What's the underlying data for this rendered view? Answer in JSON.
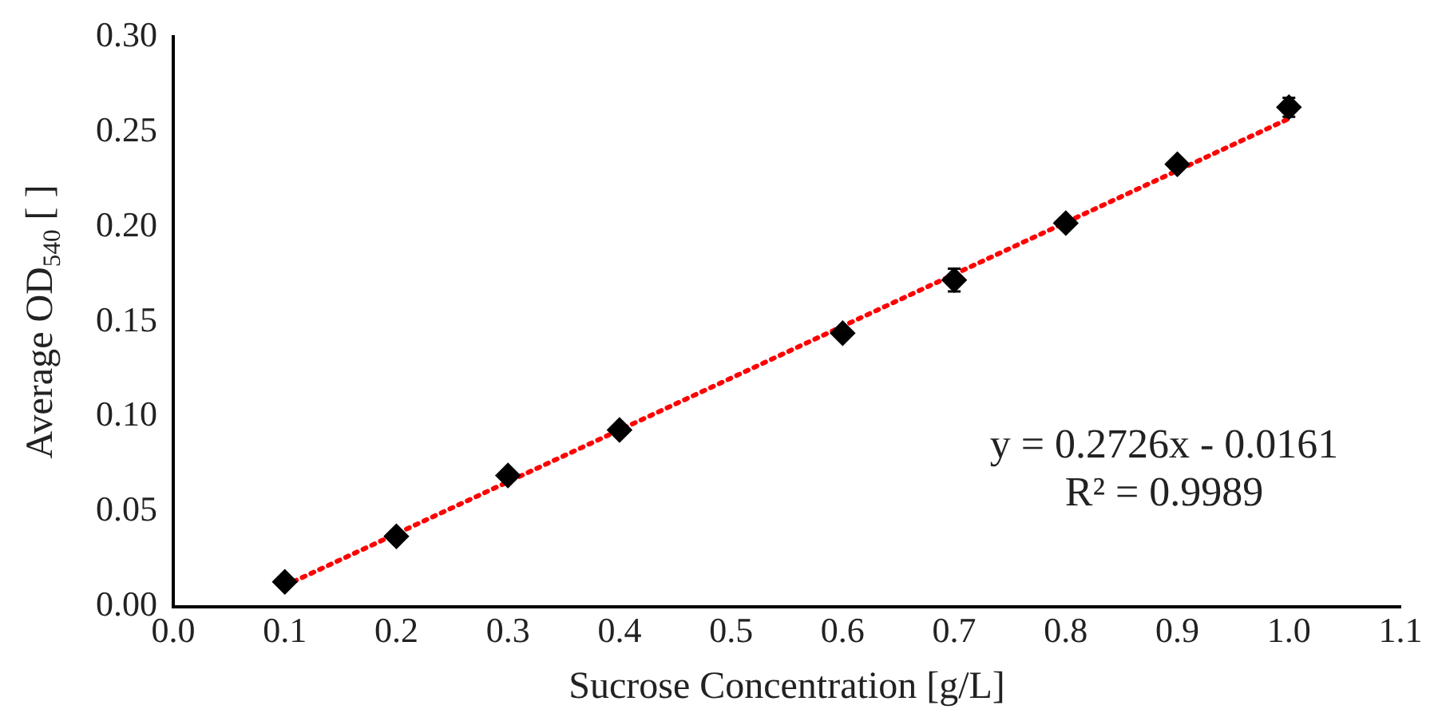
{
  "chart_data": {
    "type": "scatter",
    "xlabel": "Sucrose Concentration [g/L]",
    "ylabel": "Average OD$_{540}$ [ ]",
    "xlim": [
      0,
      1.1
    ],
    "ylim": [
      0,
      0.3
    ],
    "xticks": [
      {
        "value": 0,
        "label": "0.0"
      },
      {
        "value": 0.1,
        "label": "0.1"
      },
      {
        "value": 0.2,
        "label": "0.2"
      },
      {
        "value": 0.3,
        "label": "0.3"
      },
      {
        "value": 0.4,
        "label": "0.4"
      },
      {
        "value": 0.5,
        "label": "0.5"
      },
      {
        "value": 0.6,
        "label": "0.6"
      },
      {
        "value": 0.7,
        "label": "0.7"
      },
      {
        "value": 0.8,
        "label": "0.8"
      },
      {
        "value": 0.9,
        "label": "0.9"
      },
      {
        "value": 1,
        "label": "1.0"
      },
      {
        "value": 1.1,
        "label": "1.1"
      }
    ],
    "yticks": [
      {
        "value": 0,
        "label": "0.00"
      },
      {
        "value": 0.05,
        "label": "0.05"
      },
      {
        "value": 0.1,
        "label": "0.10"
      },
      {
        "value": 0.15,
        "label": "0.15"
      },
      {
        "value": 0.2,
        "label": "0.20"
      },
      {
        "value": 0.25,
        "label": "0.25"
      },
      {
        "value": 0.3,
        "label": "0.30"
      }
    ],
    "grid": false,
    "legend": false,
    "series": [
      {
        "color": "#000000",
        "marker": "diamond",
        "x": [
          0.1,
          0.2,
          0.3,
          0.4,
          0.6,
          0.7,
          0.8,
          0.9,
          1.0
        ],
        "values": [
          0.013,
          0.037,
          0.069,
          0.093,
          0.144,
          0.172,
          0.202,
          0.233,
          0.263
        ],
        "errors": [
          null,
          null,
          null,
          null,
          null,
          0.006,
          null,
          null,
          0.005
        ]
      },
      {
        "type": "line",
        "color": "#ff0000",
        "marker": "none",
        "line_style": "dotted",
        "x": [
          0.1,
          1.0
        ],
        "values": [
          0.011,
          0.257
        ]
      }
    ],
    "annotations": [
      "y = 0.2726x - 0.0161",
      "R² = 0.9989"
    ]
  }
}
